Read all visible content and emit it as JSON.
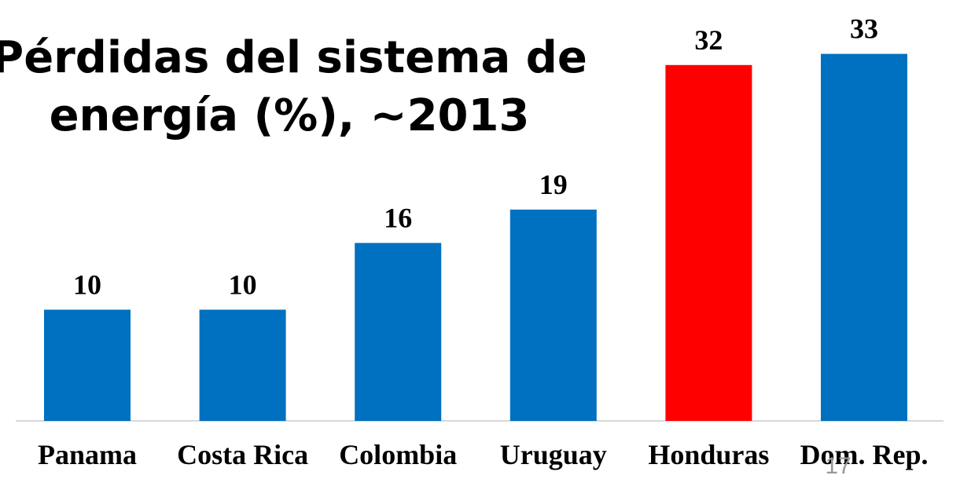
{
  "chart_data": {
    "type": "bar",
    "title_lines": [
      "Pérdidas del sistema de",
      "energía (%), ~2013"
    ],
    "categories": [
      "Panama",
      "Costa Rica",
      "Colombia",
      "Uruguay",
      "Honduras",
      "Dom. Rep."
    ],
    "values": [
      10,
      10,
      16,
      19,
      32,
      33
    ],
    "value_labels": [
      "10",
      "10",
      "16",
      "19",
      "32",
      "33"
    ],
    "bar_colors": [
      "#0070c0",
      "#0070c0",
      "#0070c0",
      "#0070c0",
      "#ff0000",
      "#0070c0"
    ],
    "highlight_category": "Honduras",
    "ylim": [
      0,
      37
    ],
    "grid": false,
    "legend": "none",
    "axis_color": "#d9d9d9"
  },
  "page_number": "17"
}
